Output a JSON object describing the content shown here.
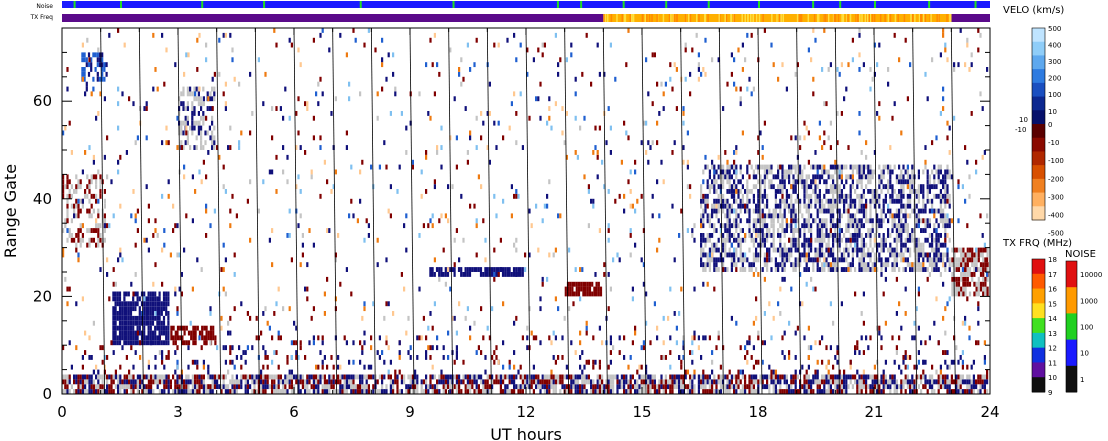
{
  "chart_data": {
    "type": "heatmap",
    "title": "",
    "xlabel": "UT hours",
    "ylabel": "Range Gate",
    "x_ticks": [
      0,
      3,
      6,
      9,
      12,
      15,
      18,
      21,
      24
    ],
    "y_ticks": [
      0,
      20,
      40,
      60
    ],
    "xlim": [
      0,
      24
    ],
    "ylim": [
      0,
      75
    ],
    "scan_lines_hours": [
      1.0,
      2.0,
      3.0,
      4.0,
      5.0,
      6.0,
      7.0,
      8.0,
      9.0,
      10.0,
      11.0,
      12.0,
      13.0,
      14.0,
      15.0,
      16.0,
      17.0,
      18.0,
      19.0,
      20.0,
      21.0,
      22.0,
      23.0
    ],
    "noise_strip": {
      "label": "Noise",
      "base_color": "#1a1aff",
      "marker_color": "#22dd22",
      "marker_hours": [
        0.3,
        1.5,
        3.6,
        5.2,
        7.7,
        10.1,
        12.8,
        13.4,
        14.5,
        15.6,
        16.7,
        18.0,
        19.4,
        20.1,
        21.0,
        22.4,
        23.6
      ]
    },
    "freq_strip": {
      "label": "TX Freq",
      "segments": [
        {
          "start": 0,
          "end": 14.0,
          "color": "#5a0a8a"
        },
        {
          "start": 14.0,
          "end": 23.0,
          "color": "#ffb000"
        },
        {
          "start": 23.0,
          "end": 24.0,
          "color": "#5a0a8a"
        }
      ]
    },
    "regions": [
      {
        "name": "near-range band",
        "x": [
          0,
          24
        ],
        "y": [
          0,
          4
        ],
        "mix": "dark-red, navy, grey",
        "density": 0.8
      },
      {
        "name": "near-range sparse",
        "x": [
          0,
          24
        ],
        "y": [
          4,
          12
        ],
        "mix": "dark-red, navy",
        "density": 0.08
      },
      {
        "name": "navy cluster 1",
        "x": [
          1.3,
          2.8
        ],
        "y": [
          10,
          21
        ],
        "mix": "navy",
        "density": 0.85
      },
      {
        "name": "red cluster 1",
        "x": [
          2.8,
          4.0
        ],
        "y": [
          10,
          14
        ],
        "mix": "dark-red",
        "density": 0.7
      },
      {
        "name": "cluster 2",
        "x": [
          3.0,
          4.0
        ],
        "y": [
          50,
          63
        ],
        "mix": "navy, grey",
        "density": 0.5
      },
      {
        "name": "cluster 3",
        "x": [
          0,
          1.2
        ],
        "y": [
          30,
          45
        ],
        "mix": "dark-red, grey",
        "density": 0.45
      },
      {
        "name": "cluster 4",
        "x": [
          0.5,
          1.2
        ],
        "y": [
          62,
          70
        ],
        "mix": "blue, navy",
        "density": 0.5
      },
      {
        "name": "navy band",
        "x": [
          9.5,
          12.0
        ],
        "y": [
          24,
          26
        ],
        "mix": "navy",
        "density": 0.8
      },
      {
        "name": "red band",
        "x": [
          13.0,
          14.0
        ],
        "y": [
          20,
          23
        ],
        "mix": "dark-red",
        "density": 0.8
      },
      {
        "name": "grey echo region",
        "x": [
          16.5,
          23.0
        ],
        "y": [
          25,
          47
        ],
        "mix": "grey, navy",
        "density": 0.6
      },
      {
        "name": "grey patch",
        "x": [
          23.0,
          24.0
        ],
        "y": [
          20,
          30
        ],
        "mix": "grey, dark-red",
        "density": 0.75
      },
      {
        "name": "background scatter",
        "x": [
          0,
          24
        ],
        "y": [
          4,
          75
        ],
        "mix": "mixed",
        "density": 0.045
      }
    ],
    "velocity_colorbar": {
      "title": "VELO (km/s)",
      "ticks": [
        "500",
        "400",
        "300",
        "200",
        "100",
        "10",
        "0",
        "-10",
        "-100",
        "-200",
        "-300",
        "-400",
        "-500"
      ]
    },
    "freq_colorbar": {
      "title": "TX FRQ (MHz)",
      "ticks": [
        "18",
        "17",
        "16",
        "15",
        "14",
        "13",
        "12",
        "11",
        "10",
        "9"
      ]
    },
    "noise_colorbar": {
      "title": "NOISE",
      "ticks": [
        "10000",
        "1000",
        "100",
        "10",
        "1"
      ]
    }
  },
  "colors": {
    "navy": "#10107a",
    "blue": "#1f5fd0",
    "lightblue": "#7fc0f0",
    "darkred": "#800000",
    "orange": "#ee7a10",
    "peach": "#ffc890",
    "grey": "#c4c4c4"
  }
}
